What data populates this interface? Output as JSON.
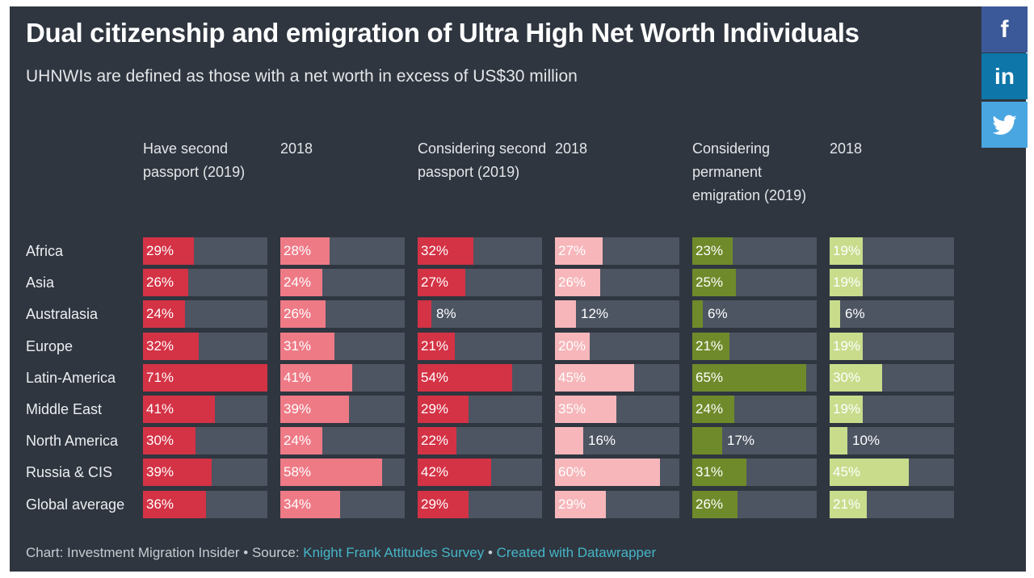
{
  "header": {
    "title": "Dual citizenship and emigration of Ultra High Net Worth Individuals",
    "subtitle": "UHNWIs are defined as those with a net worth in excess of US$30 million"
  },
  "colors": {
    "background": "#2f3640",
    "track": "#4d5562",
    "red_dark": "#d43245",
    "red_light": "#f2a0a5",
    "green_dark": "#6f8a2a",
    "green_light": "#c8dc8c"
  },
  "social": [
    {
      "name": "facebook-icon",
      "glyph": "f"
    },
    {
      "name": "linkedin-icon",
      "glyph": "in"
    },
    {
      "name": "twitter-icon",
      "glyph": "twitter"
    }
  ],
  "chart_data": {
    "type": "table",
    "title": "Dual citizenship and emigration of Ultra High Net Worth Individuals",
    "subtitle": "UHNWIs are defined as those with a net worth in excess of US$30 million",
    "row_labels": [
      "Africa",
      "Asia",
      "Australasia",
      "Europe",
      "Latin-America",
      "Middle East",
      "North America",
      "Russia & CIS",
      "Global average"
    ],
    "unit": "%",
    "max_value": 71,
    "columns": [
      {
        "header": "Have second passport (2019)",
        "color": "#d43245",
        "text_color": "#ffffff",
        "values": [
          29,
          26,
          24,
          32,
          71,
          41,
          30,
          39,
          36
        ]
      },
      {
        "header": "2018",
        "color": "#ee7a86",
        "text_color": "#ffffff",
        "values": [
          28,
          24,
          26,
          31,
          41,
          39,
          24,
          58,
          34
        ]
      },
      {
        "header": "Considering second passport (2019)",
        "color": "#d43245",
        "text_color": "#ffffff",
        "values": [
          32,
          27,
          8,
          21,
          54,
          29,
          22,
          42,
          29
        ]
      },
      {
        "header": "2018",
        "color": "#f6b6ba",
        "text_color": "#ffffff",
        "values": [
          27,
          26,
          12,
          20,
          45,
          35,
          16,
          60,
          29
        ]
      },
      {
        "header": "Considering permanent emigration (2019)",
        "color": "#6f8a2a",
        "text_color": "#ffffff",
        "values": [
          23,
          25,
          6,
          21,
          65,
          24,
          17,
          31,
          26
        ]
      },
      {
        "header": "2018",
        "color": "#c8dc8c",
        "text_color": "#ffffff",
        "values": [
          19,
          19,
          6,
          19,
          30,
          19,
          10,
          45,
          21
        ]
      }
    ]
  },
  "footer": {
    "prefix": "Chart: Investment Migration Insider • Source: ",
    "source_link": "Knight Frank Attitudes Survey",
    "separator": " • ",
    "created_link": "Created with Datawrapper"
  }
}
